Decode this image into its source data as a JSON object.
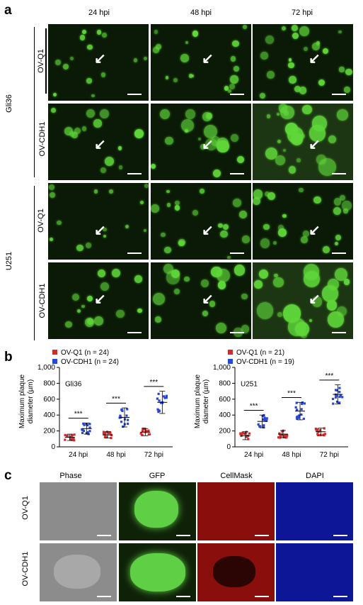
{
  "panel_a": {
    "letter": "a",
    "columns": [
      "24 hpi",
      "48 hpi",
      "72 hpi"
    ],
    "cell_lines": [
      "Gli36",
      "U251"
    ],
    "rows": [
      "OV-Q1",
      "OV-CDH1",
      "OV-Q1",
      "OV-CDH1"
    ]
  },
  "panel_b": {
    "letter": "b",
    "ylabel_line1": "Maximum plaque",
    "ylabel_line2": "diameter (µm)",
    "sig": "***"
  },
  "panel_c": {
    "letter": "c",
    "columns": [
      "Phase",
      "GFP",
      "CellMask",
      "DAPI"
    ],
    "rows": [
      "OV-Q1",
      "OV-CDH1"
    ]
  },
  "colors": {
    "ov_q1": "#d42a2a",
    "ov_cdh1": "#2646d6",
    "gfp_spot": "#5fd83a"
  },
  "chart_data": [
    {
      "type": "scatter",
      "subtitle": "Gli36",
      "ylabel": "Maximum plaque diameter (µm)",
      "ylim": [
        0,
        1000
      ],
      "yticks": [
        "0",
        "200",
        "400",
        "600",
        "800",
        "1,000"
      ],
      "categories": [
        "24 hpi",
        "48 hpi",
        "72 hpi"
      ],
      "series": [
        {
          "name": "OV-Q1 (n = 24)",
          "means": [
            120,
            150,
            185
          ],
          "sd": [
            40,
            40,
            45
          ]
        },
        {
          "name": "OV-CDH1 (n = 24)",
          "means": [
            230,
            370,
            560
          ],
          "sd": [
            70,
            120,
            140
          ]
        }
      ],
      "significance": [
        "***",
        "***",
        "***"
      ]
    },
    {
      "type": "scatter",
      "subtitle": "U251",
      "ylabel": "Maximum plaque diameter (µm)",
      "ylim": [
        0,
        1000
      ],
      "yticks": [
        "0",
        "200",
        "400",
        "600",
        "800",
        "1,000"
      ],
      "categories": [
        "24 hpi",
        "48 hpi",
        "72 hpi"
      ],
      "series": [
        {
          "name": "OV-Q1 (n = 21)",
          "means": [
            140,
            160,
            190
          ],
          "sd": [
            50,
            45,
            45
          ]
        },
        {
          "name": "OV-CDH1 (n = 19)",
          "means": [
            320,
            450,
            660
          ],
          "sd": [
            80,
            110,
            120
          ]
        }
      ],
      "significance": [
        "***",
        "***",
        "***"
      ]
    }
  ]
}
